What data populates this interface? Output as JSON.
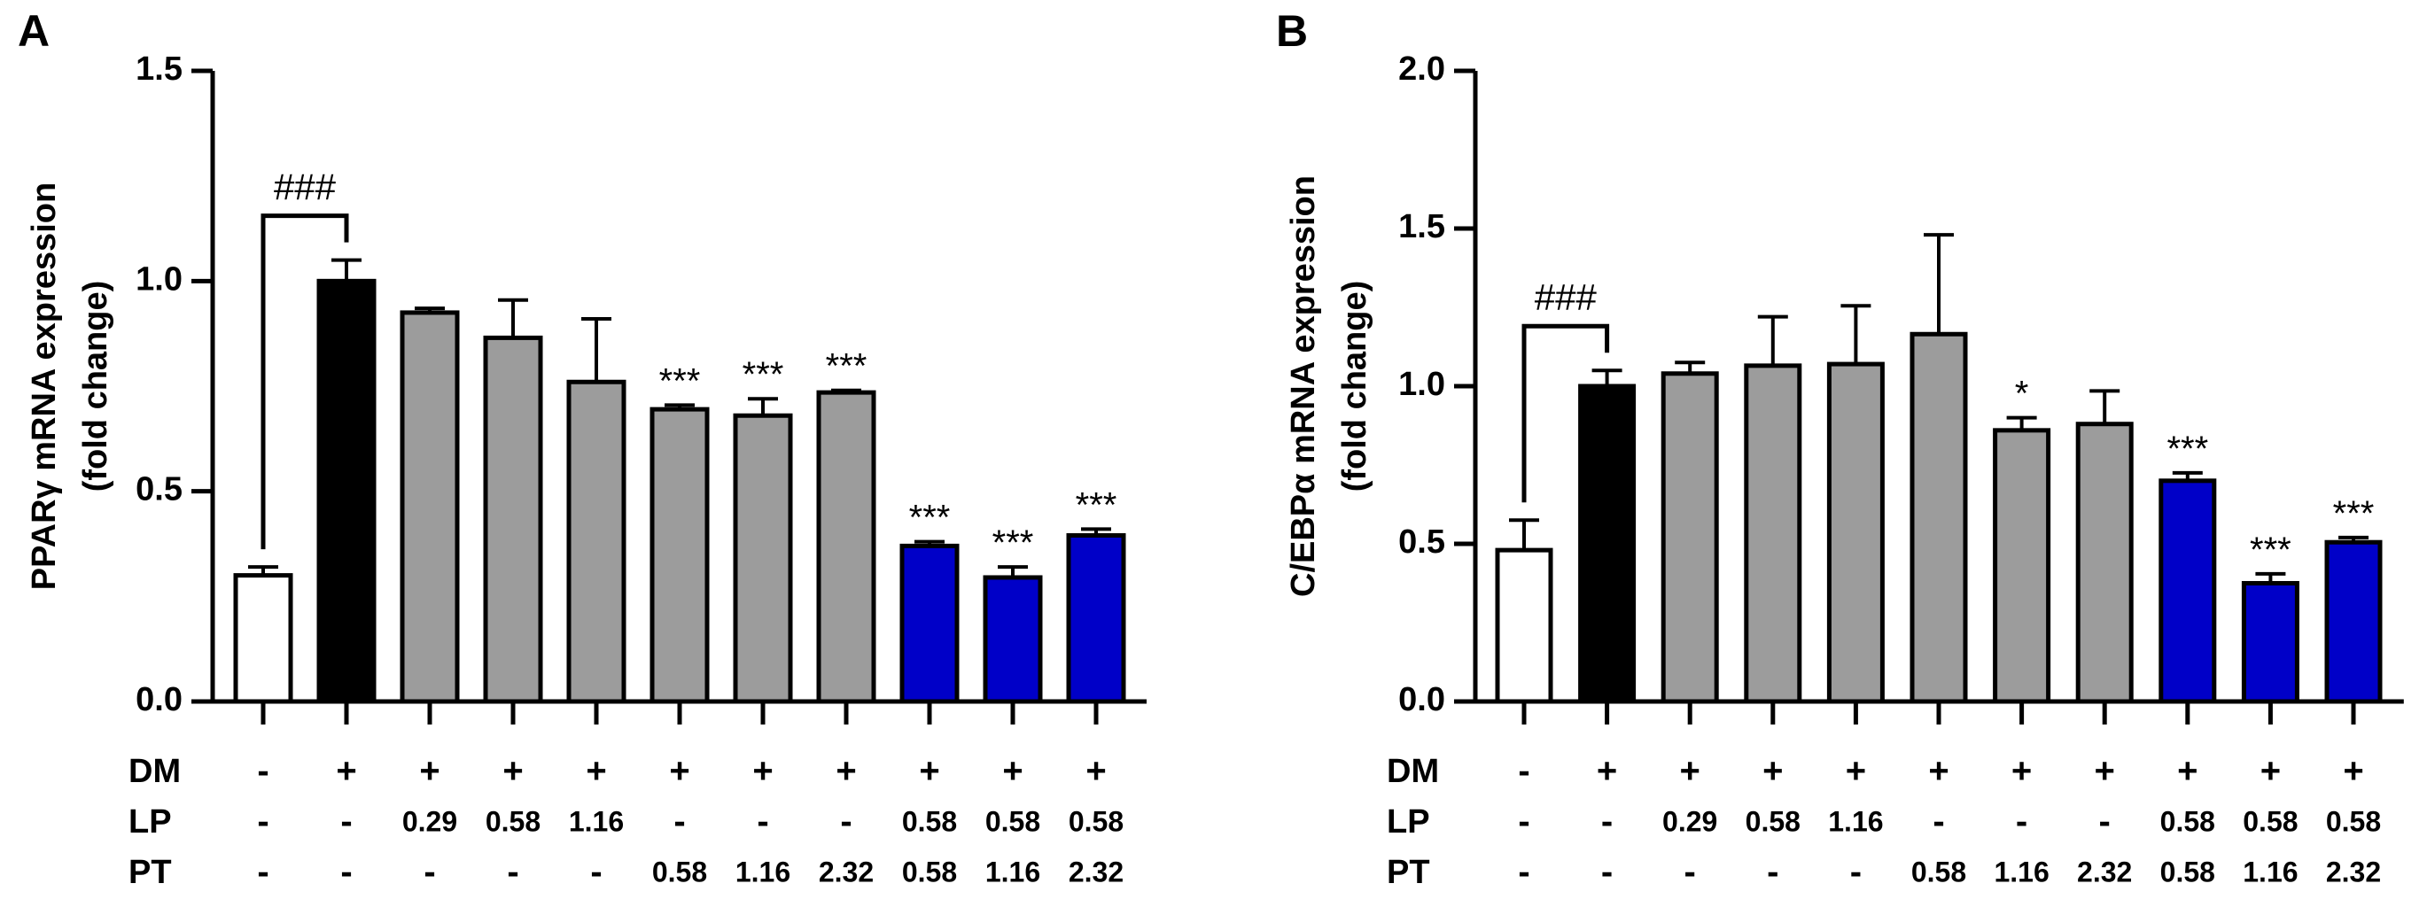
{
  "chart_data": [
    {
      "type": "bar",
      "panel_label": "A",
      "ylabel_lines": [
        "PPARγ mRNA expression",
        "(fold change)"
      ],
      "ylim": [
        0,
        1.5
      ],
      "yticks": [
        "0.0",
        "0.5",
        "1.0",
        "1.5"
      ],
      "ytick_values": [
        0,
        0.5,
        1.0,
        1.5
      ],
      "values": [
        0.3,
        1.0,
        0.925,
        0.865,
        0.76,
        0.695,
        0.68,
        0.735,
        0.37,
        0.295,
        0.395
      ],
      "errors": [
        0.02,
        0.05,
        0.01,
        0.09,
        0.15,
        0.01,
        0.04,
        0.005,
        0.01,
        0.025,
        0.015
      ],
      "colors": [
        "#ffffff",
        "#000000",
        "#9c9c9c",
        "#9c9c9c",
        "#9c9c9c",
        "#9c9c9c",
        "#9c9c9c",
        "#9c9c9c",
        "#0000c8",
        "#0000c8",
        "#0000c8"
      ],
      "significance": [
        "",
        "",
        "",
        "",
        "",
        "***",
        "***",
        "***",
        "***",
        "***",
        "***"
      ],
      "bracket_label": "###",
      "bracket_bars": [
        0,
        1
      ],
      "row_labels": [
        "DM",
        "LP",
        "PT"
      ],
      "rows": [
        [
          "-",
          "+",
          "+",
          "+",
          "+",
          "+",
          "+",
          "+",
          "+",
          "+",
          "+"
        ],
        [
          "-",
          "-",
          "0.29",
          "0.58",
          "1.16",
          "-",
          "-",
          "-",
          "0.58",
          "0.58",
          "0.58"
        ],
        [
          "-",
          "-",
          "-",
          "-",
          "-",
          "0.58",
          "1.16",
          "2.32",
          "0.58",
          "1.16",
          "2.32"
        ]
      ]
    },
    {
      "type": "bar",
      "panel_label": "B",
      "ylabel_lines": [
        "C/EBPα mRNA expression",
        "(fold change)"
      ],
      "ylim": [
        0,
        2.0
      ],
      "yticks": [
        "0.0",
        "0.5",
        "1.0",
        "1.5",
        "2.0"
      ],
      "ytick_values": [
        0,
        0.5,
        1.0,
        1.5,
        2.0
      ],
      "values": [
        0.48,
        1.0,
        1.04,
        1.065,
        1.07,
        1.165,
        0.86,
        0.88,
        0.7,
        0.375,
        0.505
      ],
      "errors": [
        0.095,
        0.05,
        0.035,
        0.155,
        0.185,
        0.315,
        0.04,
        0.105,
        0.025,
        0.03,
        0.015
      ],
      "colors": [
        "#ffffff",
        "#000000",
        "#9c9c9c",
        "#9c9c9c",
        "#9c9c9c",
        "#9c9c9c",
        "#9c9c9c",
        "#9c9c9c",
        "#0000c8",
        "#0000c8",
        "#0000c8"
      ],
      "significance": [
        "",
        "",
        "",
        "",
        "",
        "",
        "*",
        "",
        "***",
        "***",
        "***"
      ],
      "bracket_label": "###",
      "bracket_bars": [
        0,
        1
      ],
      "row_labels": [
        "DM",
        "LP",
        "PT"
      ],
      "rows": [
        [
          "-",
          "+",
          "+",
          "+",
          "+",
          "+",
          "+",
          "+",
          "+",
          "+",
          "+"
        ],
        [
          "-",
          "-",
          "0.29",
          "0.58",
          "1.16",
          "-",
          "-",
          "-",
          "0.58",
          "0.58",
          "0.58"
        ],
        [
          "-",
          "-",
          "-",
          "-",
          "-",
          "0.58",
          "1.16",
          "2.32",
          "0.58",
          "1.16",
          "2.32"
        ]
      ]
    }
  ]
}
